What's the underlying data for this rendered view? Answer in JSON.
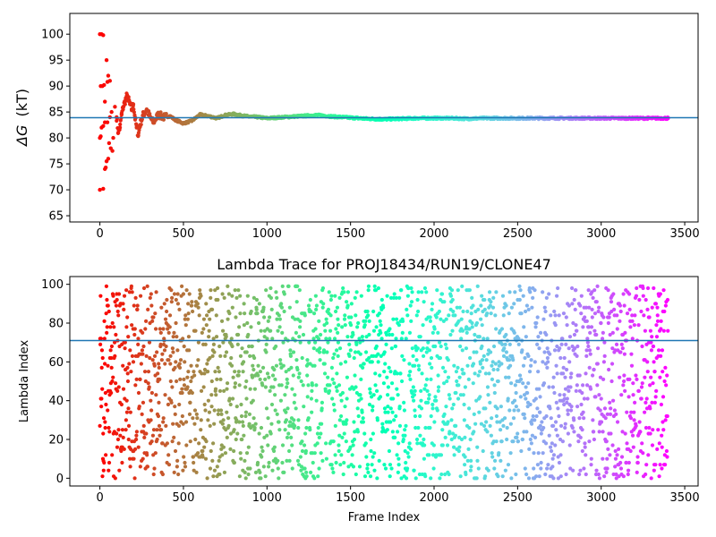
{
  "chart_data": [
    {
      "type": "scatter",
      "title": "",
      "xlabel": "",
      "ylabel": "ΔG (kT)",
      "ylabel_prefix": "ΔG",
      "ylabel_unit": "(kT)",
      "xlim": [
        -180,
        3580
      ],
      "ylim": [
        63.8,
        104
      ],
      "xticks": [
        0,
        500,
        1000,
        1500,
        2000,
        2500,
        3000,
        3500
      ],
      "yticks": [
        65,
        70,
        75,
        80,
        85,
        90,
        95,
        100
      ],
      "colormap": "rainbow",
      "reference_line": {
        "y": 83.9,
        "color": "#1f77b4"
      },
      "n_frames": 3400,
      "points": [
        [
          0,
          100
        ],
        [
          10,
          100
        ],
        [
          20,
          99.8
        ],
        [
          5,
          90
        ],
        [
          15,
          90
        ],
        [
          25,
          90.2
        ],
        [
          30,
          87
        ],
        [
          40,
          95
        ],
        [
          50,
          92
        ],
        [
          45,
          90.8
        ],
        [
          60,
          91
        ],
        [
          0,
          70
        ],
        [
          20,
          70.2
        ],
        [
          30,
          74
        ],
        [
          35,
          74.3
        ],
        [
          40,
          75.5
        ],
        [
          50,
          76
        ],
        [
          55,
          79
        ],
        [
          65,
          78
        ],
        [
          75,
          77.5
        ],
        [
          80,
          80
        ],
        [
          0,
          80
        ],
        [
          5,
          80.3
        ],
        [
          10,
          82
        ],
        [
          20,
          82.3
        ],
        [
          30,
          83
        ],
        [
          45,
          83
        ],
        [
          60,
          84
        ],
        [
          70,
          85
        ],
        [
          90,
          86
        ],
        [
          100,
          84
        ],
        [
          110,
          81
        ],
        [
          120,
          82
        ],
        [
          130,
          84.5
        ],
        [
          140,
          86
        ],
        [
          150,
          87
        ],
        [
          160,
          88
        ],
        [
          170,
          87.5
        ],
        [
          180,
          86.5
        ],
        [
          190,
          85.5
        ],
        [
          200,
          86.5
        ],
        [
          210,
          84
        ],
        [
          220,
          82
        ],
        [
          230,
          80.5
        ],
        [
          240,
          82.5
        ],
        [
          260,
          84.5
        ],
        [
          280,
          85.5
        ],
        [
          300,
          84
        ],
        [
          320,
          83
        ],
        [
          350,
          84.5
        ],
        [
          380,
          84
        ],
        [
          420,
          84.2
        ],
        [
          450,
          83.5
        ],
        [
          500,
          82.8
        ],
        [
          550,
          83.3
        ],
        [
          600,
          84.5
        ],
        [
          650,
          84.2
        ],
        [
          700,
          83.8
        ],
        [
          750,
          84.4
        ],
        [
          800,
          84.6
        ],
        [
          850,
          84.3
        ],
        [
          900,
          84.1
        ],
        [
          950,
          84
        ],
        [
          1000,
          83.8
        ],
        [
          1100,
          84
        ],
        [
          1200,
          84.2
        ],
        [
          1300,
          84.4
        ],
        [
          1400,
          84.1
        ],
        [
          1500,
          83.9
        ],
        [
          1600,
          83.7
        ],
        [
          1700,
          83.6
        ],
        [
          1800,
          83.7
        ],
        [
          1900,
          83.8
        ],
        [
          2000,
          83.8
        ],
        [
          2100,
          83.8
        ],
        [
          2200,
          83.7
        ],
        [
          2300,
          83.8
        ],
        [
          2400,
          83.8
        ],
        [
          2500,
          83.8
        ],
        [
          2600,
          83.8
        ],
        [
          2700,
          83.8
        ],
        [
          2800,
          83.8
        ],
        [
          2900,
          83.8
        ],
        [
          3000,
          83.8
        ],
        [
          3100,
          83.8
        ],
        [
          3200,
          83.8
        ],
        [
          3300,
          83.8
        ],
        [
          3400,
          83.8
        ]
      ]
    },
    {
      "type": "scatter",
      "title": "Lambda Trace for PROJ18434/RUN19/CLONE47",
      "xlabel": "Frame Index",
      "ylabel": "Lambda Index",
      "xlim": [
        -180,
        3580
      ],
      "ylim": [
        -4,
        104
      ],
      "xticks": [
        0,
        500,
        1000,
        1500,
        2000,
        2500,
        3000,
        3500
      ],
      "yticks": [
        0,
        20,
        40,
        60,
        80,
        100
      ],
      "colormap": "rainbow",
      "reference_line": {
        "y": 71,
        "color": "#1f77b4"
      },
      "n_frames": 3400,
      "lambda_range": [
        0,
        99
      ],
      "points_note": "one point per frame; lambda index spread uniformly over 0-99"
    }
  ]
}
